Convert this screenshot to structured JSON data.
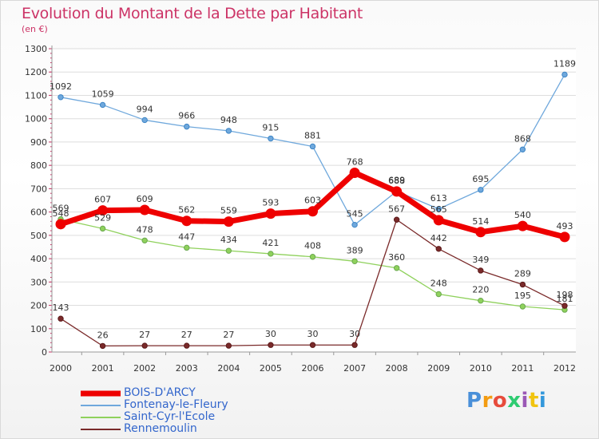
{
  "chart_data": {
    "type": "line",
    "title": "Evolution du Montant de la Dette par Habitant",
    "subtitle": "(en €)",
    "x": [
      "2000",
      "2001",
      "2002",
      "2003",
      "2004",
      "2005",
      "2006",
      "2007",
      "2008",
      "2009",
      "2010",
      "2011",
      "2012"
    ],
    "ylim": [
      0,
      1300
    ],
    "yticks": [
      0,
      100,
      200,
      300,
      400,
      500,
      600,
      700,
      800,
      900,
      1000,
      1100,
      1200,
      1300
    ],
    "grid": "horizontal",
    "legend_placement": "bottom-left",
    "series": [
      {
        "name": "BOIS-D'ARCY",
        "color": "#ee0000",
        "width": 7,
        "values": [
          548,
          607,
          609,
          562,
          559,
          593,
          603,
          768,
          688,
          565,
          514,
          540,
          493
        ]
      },
      {
        "name": "Fontenay-le-Fleury",
        "color": "#6fa8dc",
        "width": 1.3,
        "values": [
          1092,
          1059,
          994,
          966,
          948,
          915,
          881,
          545,
          689,
          613,
          695,
          868,
          1189
        ]
      },
      {
        "name": "Saint-Cyr-l'Ecole",
        "color": "#8fd15c",
        "width": 1.3,
        "values": [
          569,
          529,
          478,
          447,
          434,
          421,
          408,
          389,
          360,
          248,
          220,
          195,
          181
        ]
      },
      {
        "name": "Rennemoulin",
        "color": "#7a2a2a",
        "width": 1.3,
        "values": [
          143,
          26,
          27,
          27,
          27,
          30,
          30,
          30,
          567,
          442,
          349,
          289,
          198
        ]
      }
    ]
  },
  "logo": {
    "letters": [
      "P",
      "r",
      "o",
      "x",
      "i",
      "t",
      "i"
    ]
  }
}
